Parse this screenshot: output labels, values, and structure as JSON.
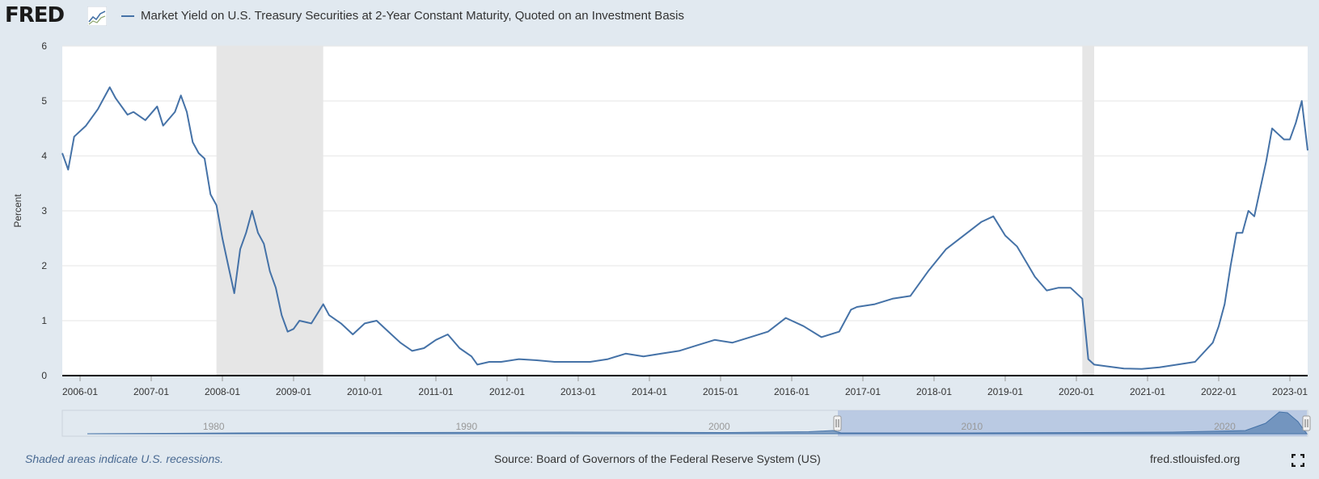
{
  "header": {
    "logo_text": "FRED",
    "series_title": "Market Yield on U.S. Treasury Securities at 2-Year Constant Maturity, Quoted on an Investment Basis"
  },
  "footer": {
    "recession_note": "Shaded areas indicate U.S. recessions.",
    "source": "Source: Board of Governors of the Federal Reserve System (US)",
    "site": "fred.stlouisfed.org"
  },
  "navigator": {
    "year_labels": [
      "1980",
      "1990",
      "2000",
      "2010",
      "2020"
    ]
  },
  "colors": {
    "series": "#4572a7",
    "recession": "#e6e6e6",
    "background": "#e1e9f0",
    "navigator_selection": "#b3c4e0",
    "grid": "#e6e6e6"
  },
  "chart_data": {
    "type": "line",
    "title": "",
    "xlabel": "",
    "ylabel": "Percent",
    "ylim": [
      0,
      6
    ],
    "yticks": [
      0,
      1,
      2,
      3,
      4,
      5,
      6
    ],
    "xlim": [
      "2005-10",
      "2023-04"
    ],
    "xticks": [
      "2006-01",
      "2007-01",
      "2008-01",
      "2009-01",
      "2010-01",
      "2011-01",
      "2012-01",
      "2013-01",
      "2014-01",
      "2015-01",
      "2016-01",
      "2017-01",
      "2018-01",
      "2019-01",
      "2020-01",
      "2021-01",
      "2022-01",
      "2023-01"
    ],
    "grid": true,
    "recessions": [
      {
        "start": "2007-12",
        "end": "2009-06"
      },
      {
        "start": "2020-02",
        "end": "2020-04"
      }
    ],
    "series": [
      {
        "name": "Market Yield on U.S. Treasury Securities at 2-Year Constant Maturity, Quoted on an Investment Basis",
        "x": [
          "2005-10",
          "2005-11",
          "2005-12",
          "2006-02",
          "2006-04",
          "2006-05",
          "2006-06",
          "2006-07",
          "2006-09",
          "2006-10",
          "2006-12",
          "2007-02",
          "2007-03",
          "2007-05",
          "2007-06",
          "2007-07",
          "2007-08",
          "2007-09",
          "2007-10",
          "2007-11",
          "2007-12",
          "2008-01",
          "2008-02",
          "2008-03",
          "2008-04",
          "2008-05",
          "2008-06",
          "2008-07",
          "2008-08",
          "2008-09",
          "2008-10",
          "2008-11",
          "2008-12",
          "2009-01",
          "2009-02",
          "2009-04",
          "2009-06",
          "2009-07",
          "2009-09",
          "2009-11",
          "2010-01",
          "2010-03",
          "2010-05",
          "2010-07",
          "2010-09",
          "2010-11",
          "2011-01",
          "2011-03",
          "2011-05",
          "2011-07",
          "2011-08",
          "2011-10",
          "2011-12",
          "2012-03",
          "2012-06",
          "2012-09",
          "2012-12",
          "2013-03",
          "2013-06",
          "2013-09",
          "2013-12",
          "2014-03",
          "2014-06",
          "2014-09",
          "2014-12",
          "2015-03",
          "2015-06",
          "2015-09",
          "2015-12",
          "2016-03",
          "2016-06",
          "2016-09",
          "2016-11",
          "2016-12",
          "2017-03",
          "2017-06",
          "2017-09",
          "2017-12",
          "2018-03",
          "2018-06",
          "2018-09",
          "2018-11",
          "2019-01",
          "2019-03",
          "2019-06",
          "2019-08",
          "2019-10",
          "2019-12",
          "2020-02",
          "2020-03",
          "2020-04",
          "2020-06",
          "2020-09",
          "2020-12",
          "2021-03",
          "2021-06",
          "2021-09",
          "2021-12",
          "2022-01",
          "2022-02",
          "2022-03",
          "2022-04",
          "2022-05",
          "2022-06",
          "2022-07",
          "2022-08",
          "2022-09",
          "2022-10",
          "2022-11",
          "2022-12",
          "2023-01",
          "2023-02",
          "2023-03",
          "2023-04"
        ],
        "y": [
          4.05,
          3.75,
          4.35,
          4.55,
          4.85,
          5.05,
          5.25,
          5.05,
          4.75,
          4.8,
          4.65,
          4.9,
          4.55,
          4.8,
          5.1,
          4.8,
          4.25,
          4.05,
          3.95,
          3.3,
          3.1,
          2.5,
          2.0,
          1.5,
          2.3,
          2.6,
          3.0,
          2.6,
          2.4,
          1.9,
          1.6,
          1.1,
          0.8,
          0.85,
          1.0,
          0.95,
          1.3,
          1.1,
          0.95,
          0.75,
          0.95,
          1.0,
          0.8,
          0.6,
          0.45,
          0.5,
          0.65,
          0.75,
          0.5,
          0.35,
          0.2,
          0.25,
          0.25,
          0.3,
          0.28,
          0.25,
          0.25,
          0.25,
          0.3,
          0.4,
          0.35,
          0.4,
          0.45,
          0.55,
          0.65,
          0.6,
          0.7,
          0.8,
          1.05,
          0.9,
          0.7,
          0.8,
          1.2,
          1.25,
          1.3,
          1.4,
          1.45,
          1.9,
          2.3,
          2.55,
          2.8,
          2.9,
          2.55,
          2.35,
          1.8,
          1.55,
          1.6,
          1.6,
          1.4,
          0.3,
          0.2,
          0.17,
          0.13,
          0.12,
          0.15,
          0.2,
          0.25,
          0.6,
          0.9,
          1.3,
          2.0,
          2.6,
          2.6,
          3.0,
          2.9,
          3.4,
          3.9,
          4.5,
          4.4,
          4.3,
          4.3,
          4.6,
          5.0,
          4.1
        ]
      }
    ]
  }
}
